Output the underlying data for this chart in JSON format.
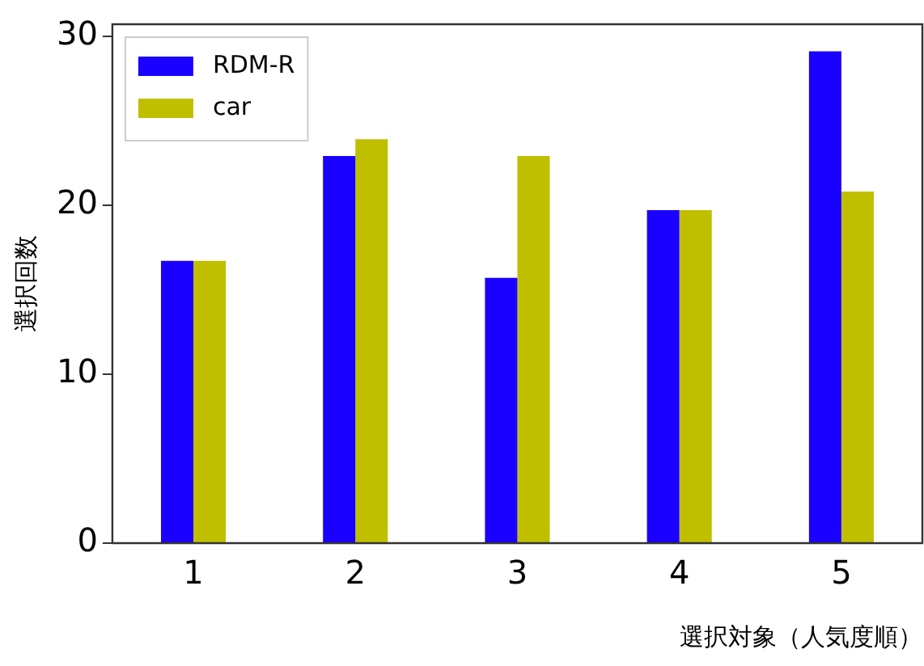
{
  "chart_data": {
    "type": "bar",
    "xlabel": "選択対象（人気度順）",
    "ylabel": "選択回数",
    "categories": [
      "1",
      "2",
      "3",
      "4",
      "5"
    ],
    "series": [
      {
        "name": "RDM-R",
        "color": "#1a00ff",
        "values": [
          16.7,
          22.9,
          15.7,
          19.7,
          29.1
        ]
      },
      {
        "name": "car",
        "color": "#bfbf00",
        "values": [
          16.7,
          23.9,
          22.9,
          19.7,
          20.8
        ]
      }
    ],
    "ylim": [
      0,
      30.7
    ],
    "yticks": [
      0,
      10,
      20,
      30
    ],
    "grid": false,
    "legend": "top left"
  }
}
